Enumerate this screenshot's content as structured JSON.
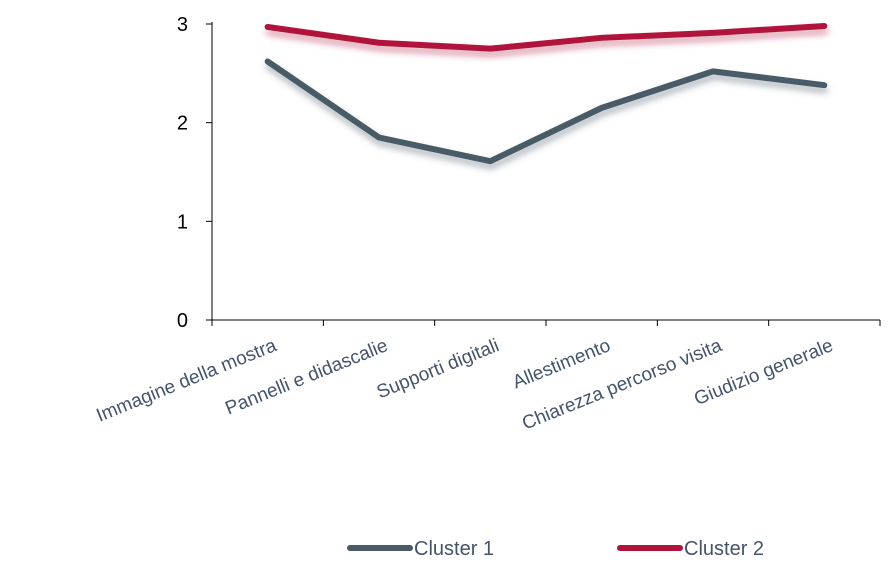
{
  "chart_data": {
    "type": "line",
    "categories": [
      "Immagine della mostra",
      "Pannelli e didascalie",
      "Supporti digitali",
      "Allestimento",
      "Chiarezza percorso visita",
      "Giudizio generale"
    ],
    "series": [
      {
        "name": "Cluster 1",
        "values": [
          2.62,
          1.85,
          1.61,
          2.15,
          2.52,
          2.38
        ],
        "color": "#4A5B68"
      },
      {
        "name": "Cluster 2",
        "values": [
          2.97,
          2.81,
          2.75,
          2.86,
          2.91,
          2.98
        ],
        "color": "#B0143C"
      }
    ],
    "ylim": [
      0,
      3
    ],
    "yticks": [
      "0",
      "1",
      "2",
      "3"
    ],
    "legend_position": "bottom",
    "grid": false
  }
}
